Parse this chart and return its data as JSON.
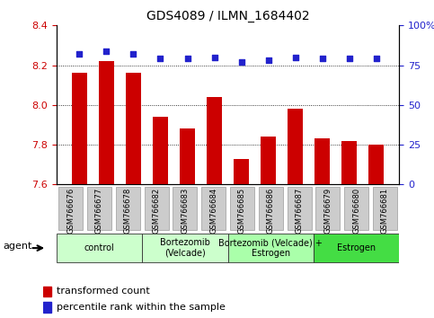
{
  "title": "GDS4089 / ILMN_1684402",
  "samples": [
    "GSM766676",
    "GSM766677",
    "GSM766678",
    "GSM766682",
    "GSM766683",
    "GSM766684",
    "GSM766685",
    "GSM766686",
    "GSM766687",
    "GSM766679",
    "GSM766680",
    "GSM766681"
  ],
  "bar_values": [
    8.16,
    8.22,
    8.16,
    7.94,
    7.88,
    8.04,
    7.73,
    7.84,
    7.98,
    7.83,
    7.82,
    7.8
  ],
  "bar_color": "#cc0000",
  "bar_bottom": 7.6,
  "percentile_values": [
    82,
    84,
    82,
    79,
    79,
    80,
    77,
    78,
    80,
    79,
    79,
    79
  ],
  "dot_color": "#2222cc",
  "ylim_left": [
    7.6,
    8.4
  ],
  "ylim_right": [
    0,
    100
  ],
  "yticks_left": [
    7.6,
    7.8,
    8.0,
    8.2,
    8.4
  ],
  "yticks_right": [
    0,
    25,
    50,
    75,
    100
  ],
  "ytick_labels_right": [
    "0",
    "25",
    "50",
    "75",
    "100%"
  ],
  "grid_values": [
    7.8,
    8.0,
    8.2
  ],
  "groups": [
    {
      "label": "control",
      "indices": [
        0,
        1,
        2
      ],
      "color": "#ccffcc"
    },
    {
      "label": "Bortezomib\n(Velcade)",
      "indices": [
        3,
        4,
        5
      ],
      "color": "#ccffcc"
    },
    {
      "label": "Bortezomib (Velcade) +\nEstrogen",
      "indices": [
        6,
        7,
        8
      ],
      "color": "#aaffaa"
    },
    {
      "label": "Estrogen",
      "indices": [
        9,
        10,
        11
      ],
      "color": "#44dd44"
    }
  ],
  "agent_label": "agent",
  "legend_bar_label": "transformed count",
  "legend_dot_label": "percentile rank within the sample",
  "tick_label_color_left": "#cc0000",
  "tick_label_color_right": "#2222cc",
  "bg_color": "#ffffff",
  "plot_bg_color": "#ffffff",
  "sample_box_color": "#cccccc",
  "title_fontsize": 10,
  "bar_width": 0.55
}
